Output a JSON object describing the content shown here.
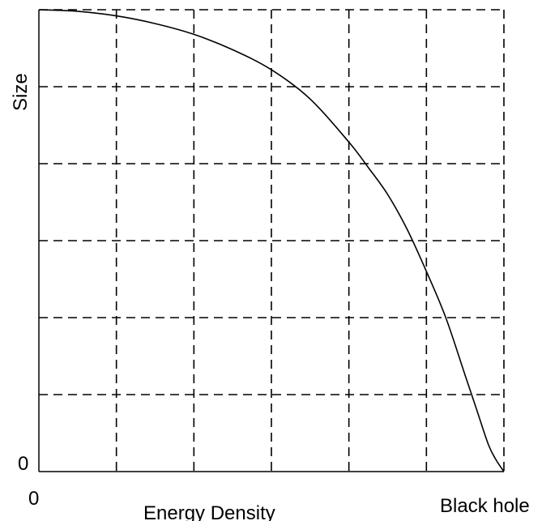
{
  "chart_data": {
    "type": "line",
    "title": "",
    "xlabel": "Energy Density",
    "ylabel": "Size",
    "x_tick_labels": {
      "start": "0",
      "end": "Black hole"
    },
    "y_tick_labels": {
      "start": "0"
    },
    "xlim": [
      0,
      6
    ],
    "ylim": [
      0,
      6
    ],
    "grid": true,
    "grid_style": "dashed",
    "line_color": "#000000",
    "series": [
      {
        "x": [
          0,
          0.5,
          1,
          1.5,
          2,
          2.5,
          3,
          3.5,
          4,
          4.25,
          4.5,
          4.75,
          5,
          5.25,
          5.5,
          5.65,
          5.8,
          5.9,
          6
        ],
        "y": [
          6,
          5.98,
          5.92,
          5.82,
          5.68,
          5.48,
          5.22,
          4.84,
          4.28,
          3.95,
          3.6,
          3.15,
          2.6,
          2.0,
          1.25,
          0.8,
          0.35,
          0.15,
          0
        ]
      }
    ]
  }
}
